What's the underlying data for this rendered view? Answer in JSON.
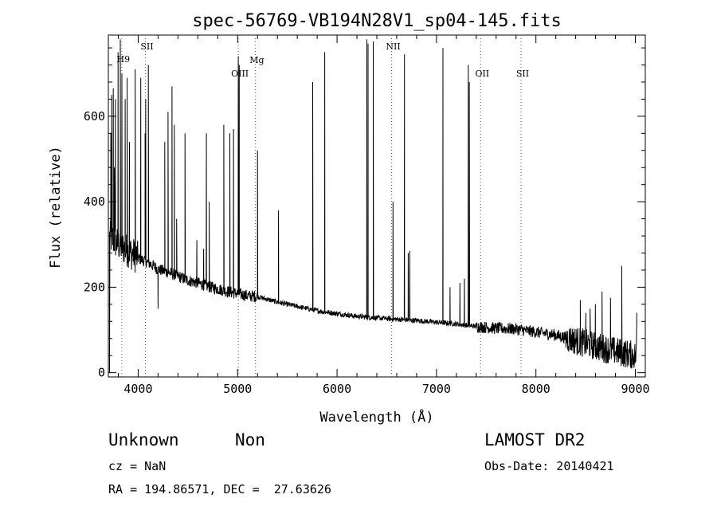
{
  "chart_data": {
    "type": "line",
    "title": "spec-56769-VB194N28V1_sp04-145.fits",
    "xlabel": "Wavelength (Å)",
    "ylabel": "Flux (relative)",
    "xlim": [
      3700,
      9100
    ],
    "ylim": [
      -10,
      790
    ],
    "xticks": [
      4000,
      5000,
      6000,
      7000,
      8000,
      9000
    ],
    "yticks": [
      0,
      200,
      400,
      600
    ],
    "grid": false,
    "continuum": [
      {
        "x": 3700,
        "y": 320
      },
      {
        "x": 3800,
        "y": 300
      },
      {
        "x": 3900,
        "y": 285
      },
      {
        "x": 4000,
        "y": 268
      },
      {
        "x": 4100,
        "y": 258
      },
      {
        "x": 4200,
        "y": 242
      },
      {
        "x": 4300,
        "y": 235
      },
      {
        "x": 4400,
        "y": 226
      },
      {
        "x": 4500,
        "y": 216
      },
      {
        "x": 4600,
        "y": 210
      },
      {
        "x": 4700,
        "y": 202
      },
      {
        "x": 4800,
        "y": 196
      },
      {
        "x": 4900,
        "y": 190
      },
      {
        "x": 5000,
        "y": 185
      },
      {
        "x": 5100,
        "y": 180
      },
      {
        "x": 5200,
        "y": 178
      },
      {
        "x": 5400,
        "y": 165
      },
      {
        "x": 5600,
        "y": 155
      },
      {
        "x": 5800,
        "y": 145
      },
      {
        "x": 6000,
        "y": 138
      },
      {
        "x": 6200,
        "y": 132
      },
      {
        "x": 6400,
        "y": 128
      },
      {
        "x": 6600,
        "y": 125
      },
      {
        "x": 6800,
        "y": 122
      },
      {
        "x": 7000,
        "y": 118
      },
      {
        "x": 7200,
        "y": 114
      },
      {
        "x": 7400,
        "y": 108
      },
      {
        "x": 7600,
        "y": 104
      },
      {
        "x": 7800,
        "y": 102
      },
      {
        "x": 8000,
        "y": 95
      },
      {
        "x": 8200,
        "y": 88
      },
      {
        "x": 8400,
        "y": 75
      },
      {
        "x": 8600,
        "y": 62
      },
      {
        "x": 8800,
        "y": 50
      },
      {
        "x": 9000,
        "y": 40
      }
    ],
    "emission_peaks": [
      {
        "x": 3712,
        "y": 0
      },
      {
        "x": 3725,
        "y": 560
      },
      {
        "x": 3734,
        "y": 650
      },
      {
        "x": 3750,
        "y": 665
      },
      {
        "x": 3760,
        "y": 480
      },
      {
        "x": 3771,
        "y": 640
      },
      {
        "x": 3798,
        "y": 750
      },
      {
        "x": 3820,
        "y": 780
      },
      {
        "x": 3836,
        "y": 700
      },
      {
        "x": 3869,
        "y": 640
      },
      {
        "x": 3889,
        "y": 690
      },
      {
        "x": 3912,
        "y": 540
      },
      {
        "x": 3970,
        "y": 710
      },
      {
        "x": 4026,
        "y": 690
      },
      {
        "x": 4069,
        "y": 560
      },
      {
        "x": 4076,
        "y": 640
      },
      {
        "x": 4102,
        "y": 720
      },
      {
        "x": 4200,
        "y": 150
      },
      {
        "x": 4267,
        "y": 540
      },
      {
        "x": 4300,
        "y": 610
      },
      {
        "x": 4340,
        "y": 670
      },
      {
        "x": 4363,
        "y": 580
      },
      {
        "x": 4387,
        "y": 360
      },
      {
        "x": 4471,
        "y": 560
      },
      {
        "x": 4590,
        "y": 310
      },
      {
        "x": 4658,
        "y": 290
      },
      {
        "x": 4686,
        "y": 560
      },
      {
        "x": 4714,
        "y": 400
      },
      {
        "x": 4861,
        "y": 580
      },
      {
        "x": 4922,
        "y": 560
      },
      {
        "x": 4959,
        "y": 570
      },
      {
        "x": 5007,
        "y": 740
      },
      {
        "x": 5016,
        "y": 720
      },
      {
        "x": 5200,
        "y": 520
      },
      {
        "x": 5411,
        "y": 380
      },
      {
        "x": 5755,
        "y": 680
      },
      {
        "x": 5876,
        "y": 750
      },
      {
        "x": 6300,
        "y": 780
      },
      {
        "x": 6312,
        "y": 770
      },
      {
        "x": 6364,
        "y": 775
      },
      {
        "x": 6563,
        "y": 400
      },
      {
        "x": 6678,
        "y": 745
      },
      {
        "x": 6716,
        "y": 280
      },
      {
        "x": 6731,
        "y": 285
      },
      {
        "x": 7065,
        "y": 760
      },
      {
        "x": 7136,
        "y": 200
      },
      {
        "x": 7236,
        "y": 210
      },
      {
        "x": 7281,
        "y": 220
      },
      {
        "x": 7320,
        "y": 720
      },
      {
        "x": 7330,
        "y": 680
      },
      {
        "x": 8446,
        "y": 170
      },
      {
        "x": 8502,
        "y": 140
      },
      {
        "x": 8545,
        "y": 150
      },
      {
        "x": 8598,
        "y": 160
      },
      {
        "x": 8665,
        "y": 190
      },
      {
        "x": 8750,
        "y": 175
      },
      {
        "x": 8863,
        "y": 250
      },
      {
        "x": 9015,
        "y": 140
      }
    ],
    "line_markers": [
      {
        "label": "H9",
        "x": 3835
      },
      {
        "label": "SII",
        "x": 4072
      },
      {
        "label": "OIII",
        "x": 5007
      },
      {
        "label": "Mg",
        "x": 5177
      },
      {
        "label": "NII",
        "x": 6549
      },
      {
        "label": "OII",
        "x": 7444
      },
      {
        "label": "SII",
        "x": 7850
      }
    ]
  },
  "info": {
    "class_label": "Unknown",
    "subclass_label": "Non",
    "survey": "LAMOST DR2",
    "cz": "cz = NaN",
    "obs_date": "Obs-Date: 20140421",
    "coords": "RA = 194.86571, DEC =  27.63626"
  }
}
